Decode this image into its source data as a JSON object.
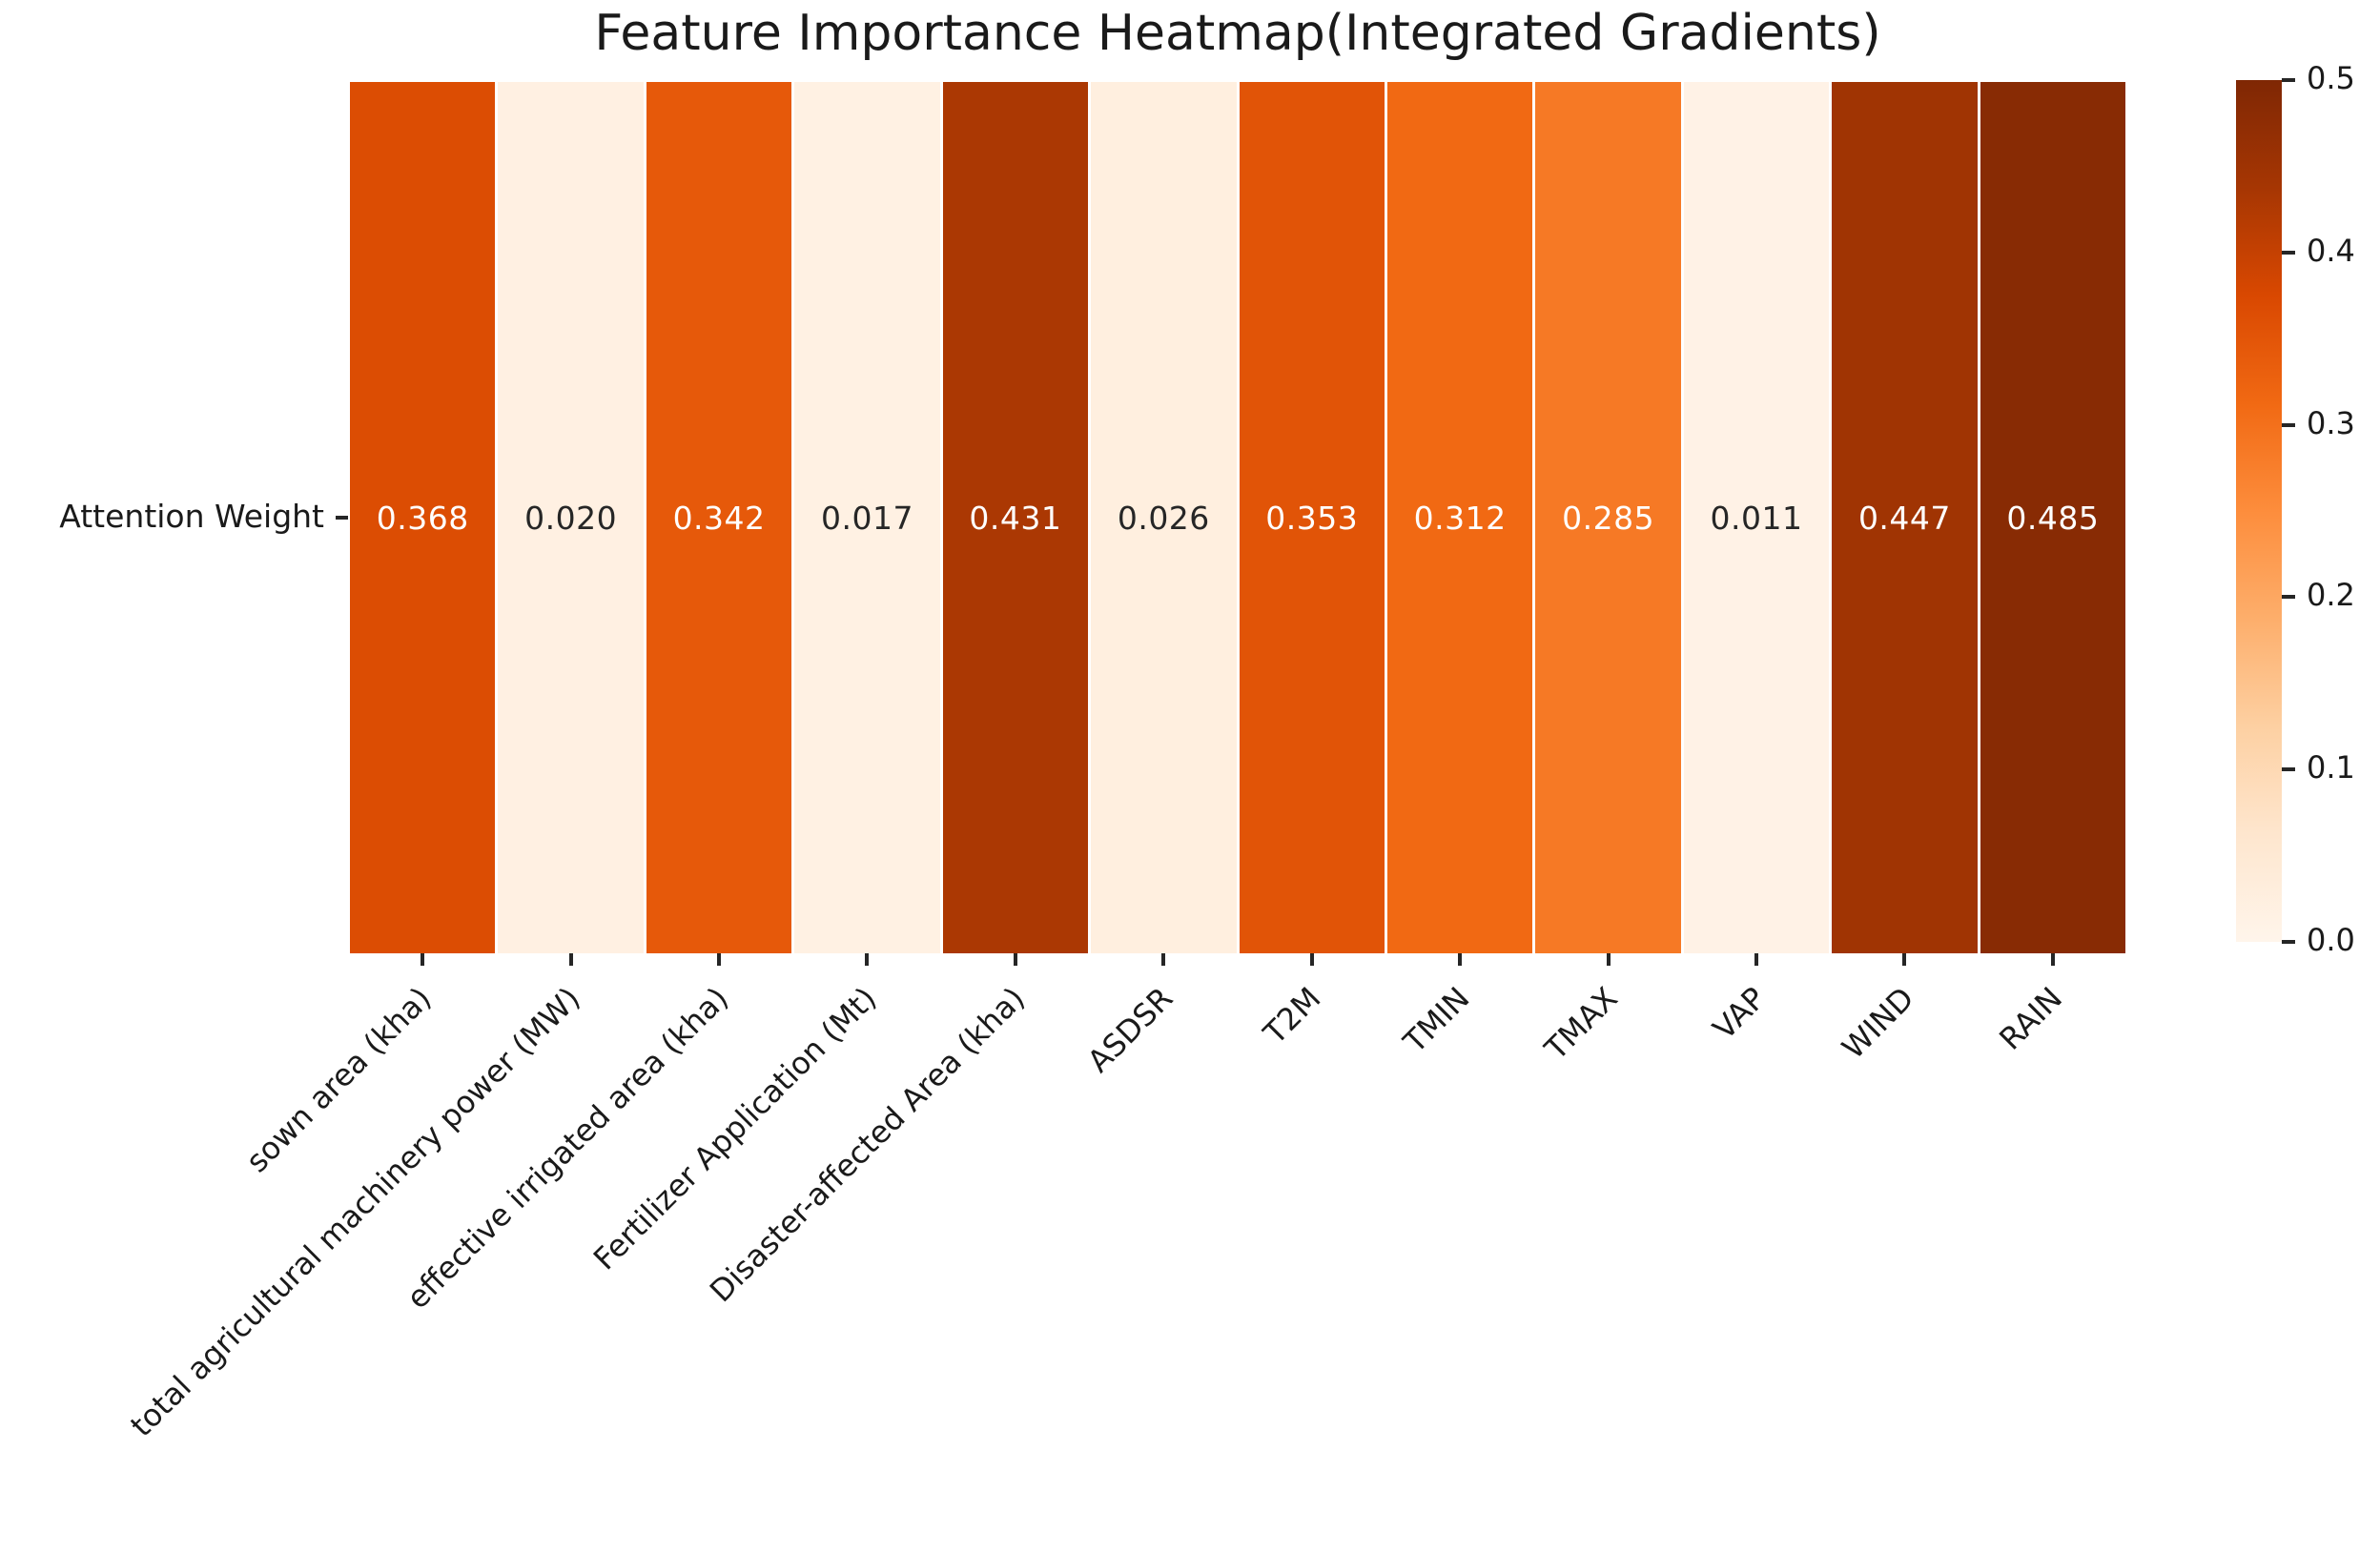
{
  "chart_data": {
    "type": "heatmap",
    "title": "Feature Importance Heatmap(Integrated Gradients)",
    "row_label": "Attention Weight",
    "categories": [
      "sown area (kha)",
      "total agricultural machinery power (MW)",
      "effective irrigated area (kha)",
      "Fertilizer Application (Mt)",
      "Disaster-affected Area (kha)",
      "ASDSR",
      "T2M",
      "TMIN",
      "TMAX",
      "VAP",
      "WIND",
      "RAIN"
    ],
    "values": [
      0.368,
      0.02,
      0.342,
      0.017,
      0.431,
      0.026,
      0.353,
      0.312,
      0.285,
      0.011,
      0.447,
      0.485
    ],
    "value_labels": [
      "0.368",
      "0.020",
      "0.342",
      "0.017",
      "0.431",
      "0.026",
      "0.353",
      "0.312",
      "0.285",
      "0.011",
      "0.447",
      "0.485"
    ],
    "cell_colors": [
      "#dc4d03",
      "#fff0e2",
      "#e6590a",
      "#fff1e3",
      "#ab3803",
      "#ffefdf",
      "#e15407",
      "#f16913",
      "#f67925",
      "#fff2e6",
      "#a03403",
      "#882b04"
    ],
    "cell_text_colors": [
      "#ffffff",
      "#262626",
      "#ffffff",
      "#262626",
      "#ffffff",
      "#262626",
      "#ffffff",
      "#ffffff",
      "#ffffff",
      "#262626",
      "#ffffff",
      "#ffffff"
    ],
    "colormap": "Oranges",
    "vmin": 0.0,
    "vmax": 0.5,
    "grid": false,
    "legend_position": "right-colorbar",
    "colorbar_tick_labels": [
      "0.5",
      "0.4",
      "0.3",
      "0.2",
      "0.1",
      "0.0"
    ],
    "colorbar_tick_values": [
      0.5,
      0.4,
      0.3,
      0.2,
      0.1,
      0.0
    ],
    "colorbar_gradient_stops": [
      "#fff5eb",
      "#fee6ce",
      "#fdd0a2",
      "#fdae6b",
      "#fd8d3c",
      "#f16913",
      "#d94801",
      "#a63603",
      "#7f2704"
    ]
  }
}
